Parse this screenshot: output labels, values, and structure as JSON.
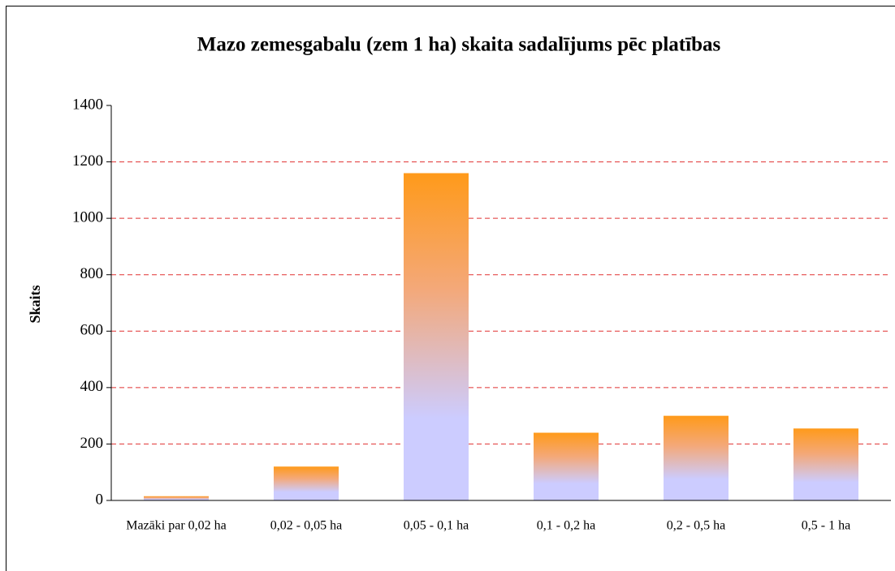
{
  "chart_data": {
    "type": "bar",
    "title": "Mazo zemesgabalu (zem 1 ha) skaita sadalījums pēc platības",
    "ylabel": "Skaits",
    "categories": [
      "Mazāki par 0,02 ha",
      "0,02 - 0,05 ha",
      "0,05 - 0,1 ha",
      "0,1 - 0,2 ha",
      "0,2 - 0,5 ha",
      "0,5 - 1 ha"
    ],
    "values": [
      15,
      120,
      1160,
      240,
      300,
      255
    ],
    "color": "#ff9a1a",
    "ylim": [
      0,
      1400
    ],
    "yticks": [
      0,
      200,
      400,
      600,
      800,
      1000,
      1200,
      1400
    ],
    "grid": true
  }
}
